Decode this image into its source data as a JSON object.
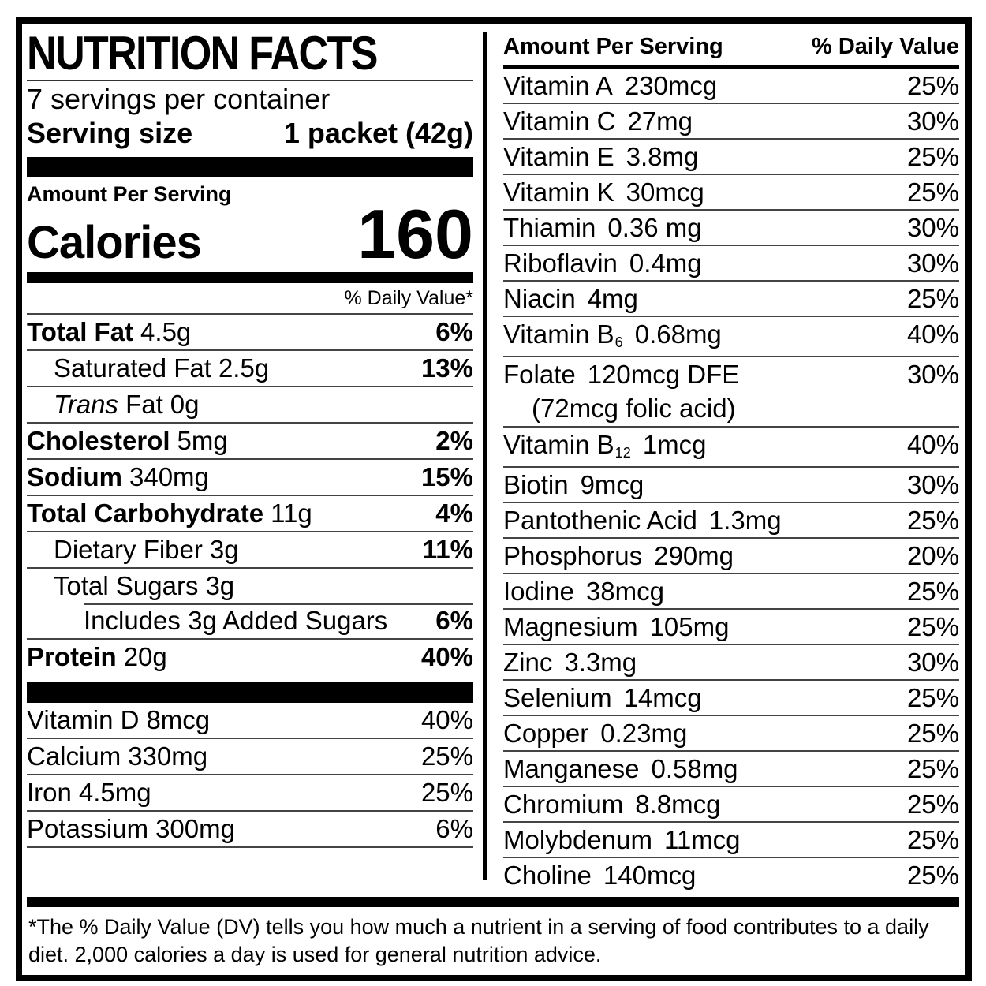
{
  "colors": {
    "text": "#000000",
    "background": "#ffffff",
    "rule": "#444444"
  },
  "label": {
    "title": "NUTRITION FACTS",
    "servings_per_container": "7 servings per container",
    "serving_size_label": "Serving size",
    "serving_size_value": "1 packet (42g)",
    "amount_per_serving": "Amount Per Serving",
    "calories_label": "Calories",
    "calories_value": "160",
    "daily_value_note": "% Daily Value*",
    "left_rows": [
      {
        "name": "Total Fat",
        "amount": "4.5g",
        "dv": "6%",
        "bold": true,
        "indent": 0
      },
      {
        "name": "Saturated Fat",
        "amount": "2.5g",
        "dv": "13%",
        "bold": false,
        "indent": 1
      },
      {
        "italic": "Trans",
        "name": "Fat",
        "amount": "0g",
        "dv": "",
        "bold": false,
        "indent": 1
      },
      {
        "name": "Cholesterol",
        "amount": "5mg",
        "dv": "2%",
        "bold": true,
        "indent": 0
      },
      {
        "name": "Sodium",
        "amount": "340mg",
        "dv": "15%",
        "bold": true,
        "indent": 0
      },
      {
        "name": "Total Carbohydrate",
        "amount": "11g",
        "dv": "4%",
        "bold": true,
        "indent": 0
      },
      {
        "name": "Dietary Fiber",
        "amount": "3g",
        "dv": "11%",
        "bold": false,
        "indent": 1
      },
      {
        "name": "Total Sugars",
        "amount": "3g",
        "dv": "",
        "bold": false,
        "indent": 1
      },
      {
        "name": "Includes 3g Added Sugars",
        "amount": "",
        "dv": "6%",
        "bold": false,
        "indent": 2,
        "sep_indent": true
      },
      {
        "name": "Protein",
        "amount": "20g",
        "dv": "40%",
        "bold": true,
        "indent": 0
      }
    ],
    "left_micros": [
      {
        "name": "Vitamin D",
        "amount": "8mcg",
        "dv": "40%"
      },
      {
        "name": "Calcium",
        "amount": "330mg",
        "dv": "25%"
      },
      {
        "name": "Iron",
        "amount": "4.5mg",
        "dv": "25%"
      },
      {
        "name": "Potassium",
        "amount": "300mg",
        "dv": "6%"
      }
    ],
    "right_header": {
      "amount_per_serving": "Amount Per Serving",
      "daily_value": "% Daily Value"
    },
    "right_rows": [
      {
        "name": "Vitamin A",
        "amount": "230mcg",
        "dv": "25%"
      },
      {
        "name": "Vitamin C",
        "amount": "27mg",
        "dv": "30%"
      },
      {
        "name": "Vitamin E",
        "amount": "3.8mg",
        "dv": "25%"
      },
      {
        "name": "Vitamin K",
        "amount": "30mcg",
        "dv": "25%"
      },
      {
        "name": "Thiamin",
        "amount": "0.36 mg",
        "dv": "30%"
      },
      {
        "name": "Riboflavin",
        "amount": "0.4mg",
        "dv": "30%"
      },
      {
        "name": "Niacin",
        "amount": "4mg",
        "dv": "25%"
      },
      {
        "name": "Vitamin B",
        "sub": "6",
        "amount": "0.68mg",
        "dv": "40%"
      },
      {
        "name": "Folate",
        "amount": "120mcg DFE",
        "dv": "30%",
        "line2": "(72mcg folic acid)"
      },
      {
        "name": "Vitamin B",
        "sub": "12",
        "amount": "1mcg",
        "dv": "40%"
      },
      {
        "name": "Biotin",
        "amount": "9mcg",
        "dv": "30%"
      },
      {
        "name": "Pantothenic Acid",
        "amount": "1.3mg",
        "dv": "25%"
      },
      {
        "name": "Phosphorus",
        "amount": "290mg",
        "dv": "20%"
      },
      {
        "name": "Iodine",
        "amount": "38mcg",
        "dv": "25%"
      },
      {
        "name": "Magnesium",
        "amount": "105mg",
        "dv": "25%"
      },
      {
        "name": "Zinc",
        "amount": "3.3mg",
        "dv": "30%"
      },
      {
        "name": "Selenium",
        "amount": "14mcg",
        "dv": "25%"
      },
      {
        "name": "Copper",
        "amount": "0.23mg",
        "dv": "25%"
      },
      {
        "name": "Manganese",
        "amount": "0.58mg",
        "dv": "25%"
      },
      {
        "name": "Chromium",
        "amount": "8.8mcg",
        "dv": "25%"
      },
      {
        "name": "Molybdenum",
        "amount": "11mcg",
        "dv": "25%"
      },
      {
        "name": "Choline",
        "amount": "140mcg",
        "dv": "25%"
      }
    ],
    "footnote": "*The % Daily Value (DV) tells you how much a nutrient in a serving of food contributes to a daily diet. 2,000 calories a day is used for general nutrition advice."
  }
}
